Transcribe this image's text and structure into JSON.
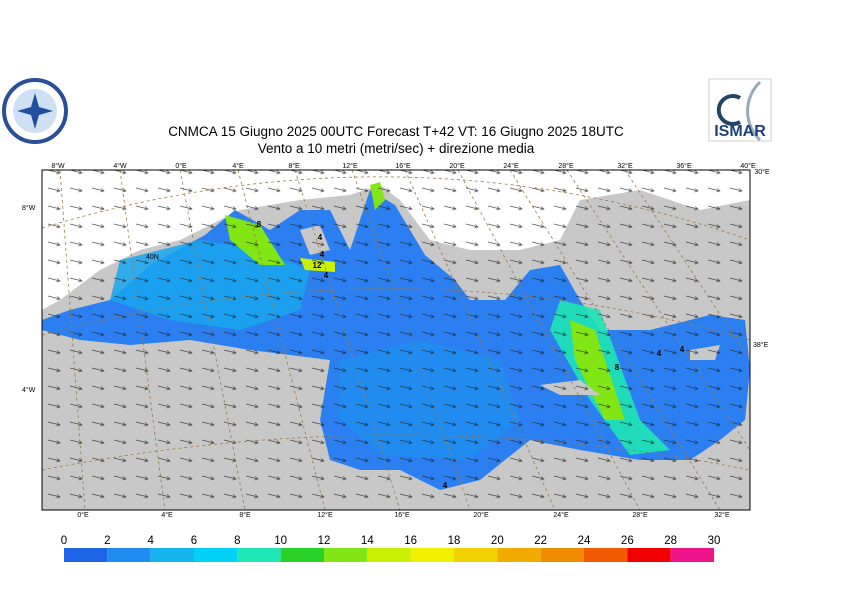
{
  "header": {
    "title_line1": "CNMCA 15   Giugno  2025 00UTC Forecast T+42 VT: 16   Giugno  2025 18UTC",
    "title_line2": "Vento a 10 metri (metri/sec) + direzione media",
    "logo_right": "ISMAR"
  },
  "map": {
    "top_labels": [
      "8°W",
      "4°W",
      "0°E",
      "4°E",
      "8°E",
      "12°E",
      "16°E",
      "20°E",
      "24°E",
      "28°E",
      "32°E",
      "36°E",
      "40°E",
      "30°E"
    ],
    "left_labels": [
      "8°W",
      "40N",
      "4°W"
    ],
    "right_labels": [
      "38°E"
    ],
    "bottom_labels": [
      "0°E",
      "4°E",
      "8°E",
      "12°E",
      "16°E",
      "20°E",
      "24°E",
      "28°E",
      "32°E"
    ],
    "contour_labels": [
      "8",
      "4",
      "12",
      "4",
      "4",
      "8",
      "4",
      "4",
      "4"
    ]
  },
  "colorbar": {
    "ticks": [
      0,
      2,
      4,
      6,
      8,
      10,
      12,
      14,
      16,
      18,
      20,
      22,
      24,
      26,
      28,
      30
    ],
    "colors": [
      "#1e64e6",
      "#1e8cf0",
      "#14b4f0",
      "#00d2f5",
      "#1ee6b4",
      "#28d228",
      "#82e614",
      "#c8f000",
      "#f0f000",
      "#f0d200",
      "#f0aa00",
      "#f08c00",
      "#f05a00",
      "#f00000",
      "#f0148c"
    ]
  }
}
